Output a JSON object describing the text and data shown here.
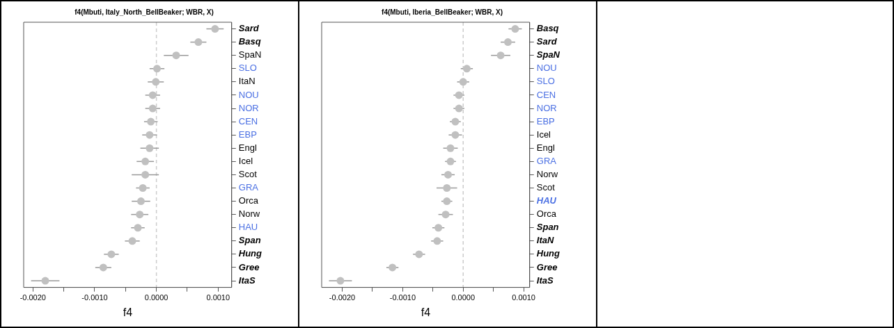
{
  "chart_data": [
    {
      "type": "scatter",
      "title": "f4(Mbuti, Italy_North_BellBeaker; WBR, X)",
      "xlabel": "f4",
      "categories": [
        "Sard",
        "Basq",
        "SpaN",
        "SLO",
        "ItaN",
        "NOU",
        "NOR",
        "CEN",
        "EBP",
        "Engl",
        "Icel",
        "Scot",
        "GRA",
        "Orca",
        "Norw",
        "HAU",
        "Span",
        "Hung",
        "Gree",
        "ItaS"
      ],
      "series": [
        {
          "color": "#c0c0c0",
          "values": [
            0.00095,
            0.00068,
            0.00032,
            1e-05,
            -1e-05,
            -6e-05,
            -6e-05,
            -9e-05,
            -0.00011,
            -0.00011,
            -0.00018,
            -0.00018,
            -0.00022,
            -0.00025,
            -0.00027,
            -0.0003,
            -0.00039,
            -0.00073,
            -0.00086,
            -0.0018
          ],
          "errors": [
            0.00014,
            0.00013,
            0.0002,
            0.00012,
            0.00013,
            0.00012,
            0.00012,
            0.00011,
            0.00012,
            0.00015,
            0.00014,
            0.00022,
            0.00011,
            0.00015,
            0.00014,
            0.00011,
            0.00012,
            0.00012,
            0.00013,
            0.00023
          ]
        }
      ],
      "orientation": "horizontal",
      "xlim": [
        -0.00215,
        0.00122
      ],
      "xticks": [
        {
          "value": -0.002,
          "label": "-0.0020"
        },
        {
          "value": -0.0015,
          "label": null
        },
        {
          "value": -0.001,
          "label": "-0.0010"
        },
        {
          "value": -0.0005,
          "label": null
        },
        {
          "value": 0,
          "label": "0.0000"
        },
        {
          "value": 0.0005,
          "label": null
        },
        {
          "value": 0.001,
          "label": "0.0010"
        }
      ],
      "ref_lines": [
        {
          "axis": "x",
          "value": 0,
          "color": "#cccccc",
          "line_style": "dashed"
        }
      ],
      "marker": "circle",
      "grid": false,
      "legend": false
    },
    {
      "type": "scatter",
      "title": "f4(Mbuti, Iberia_BellBeaker; WBR, X)",
      "xlabel": "f4",
      "categories": [
        "Basq",
        "Sard",
        "SpaN",
        "NOU",
        "SLO",
        "CEN",
        "NOR",
        "EBP",
        "Icel",
        "Engl",
        "GRA",
        "Norw",
        "Scot",
        "HAU",
        "Orca",
        "Span",
        "ItaN",
        "Hung",
        "Gree",
        "ItaS"
      ],
      "series": [
        {
          "color": "#c0c0c0",
          "values": [
            0.00086,
            0.00074,
            0.00062,
            6e-05,
            0,
            -7e-05,
            -7e-05,
            -0.00013,
            -0.00013,
            -0.00021,
            -0.00021,
            -0.00025,
            -0.00027,
            -0.00027,
            -0.00029,
            -0.00041,
            -0.00043,
            -0.00073,
            -0.00117,
            -0.00203
          ],
          "errors": [
            0.00011,
            0.00012,
            0.00016,
            0.0001,
            0.0001,
            9e-05,
            9e-05,
            9e-05,
            0.00011,
            0.00012,
            9e-05,
            0.00011,
            0.00017,
            9e-05,
            0.00012,
            0.0001,
            0.0001,
            0.0001,
            0.0001,
            0.00019
          ]
        }
      ],
      "orientation": "horizontal",
      "xlim": [
        -0.00234,
        0.0011
      ],
      "xticks": [
        {
          "value": -0.002,
          "label": "-0.0020"
        },
        {
          "value": -0.0015,
          "label": null
        },
        {
          "value": -0.001,
          "label": "-0.0010"
        },
        {
          "value": -0.0005,
          "label": null
        },
        {
          "value": 0,
          "label": "0.0000"
        },
        {
          "value": 0.0005,
          "label": null
        },
        {
          "value": 0.001,
          "label": "0.0010"
        }
      ],
      "ref_lines": [
        {
          "axis": "x",
          "value": 0,
          "color": "#cccccc",
          "line_style": "dashed"
        }
      ],
      "marker": "circle",
      "grid": false,
      "legend": false
    }
  ]
}
